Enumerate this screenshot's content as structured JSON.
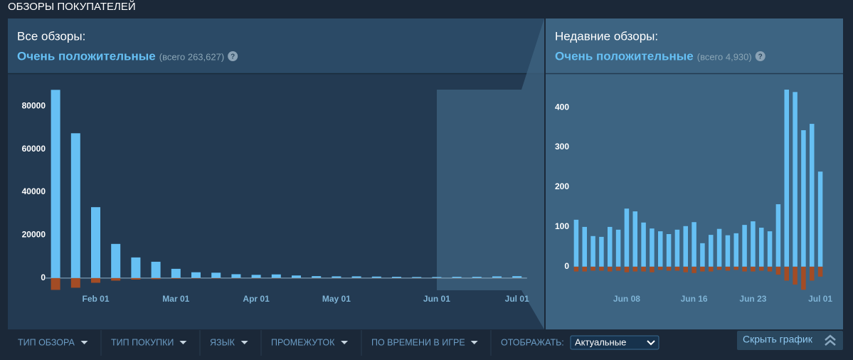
{
  "section_title": "ОБЗОРЫ ПОКУПАТЕЛЕЙ",
  "panels": [
    {
      "label": "Все обзоры:",
      "rating": "Очень положительные",
      "total": "(всего 263,627)",
      "help": "?"
    },
    {
      "label": "Недавние обзоры:",
      "rating": "Очень положительные",
      "total": "(всего 4,930)",
      "help": "?"
    }
  ],
  "chart_data": [
    {
      "type": "bar",
      "categories": [
        null,
        null,
        "Feb 01",
        null,
        null,
        null,
        "Mar 01",
        null,
        null,
        null,
        "Apr 01",
        null,
        null,
        null,
        "May 01",
        null,
        null,
        null,
        null,
        "Jun 01",
        null,
        null,
        null,
        "Jul 01"
      ],
      "series": [
        {
          "color": "#66c0f4",
          "values": [
            87600,
            67400,
            33000,
            15900,
            9600,
            7600,
            4300,
            2700,
            2500,
            1800,
            1500,
            1700,
            1200,
            900,
            800,
            800,
            700,
            600,
            500,
            500,
            600,
            600,
            800,
            900
          ]
        },
        {
          "color": "#a34c25",
          "values": [
            -5500,
            -4500,
            -2200,
            -1200,
            -700,
            -500,
            -300,
            -200,
            -200,
            -150,
            -150,
            -150,
            -100,
            -100,
            -100,
            -100,
            -100,
            -100,
            -100,
            -100,
            -100,
            -100,
            -100,
            -100
          ]
        }
      ],
      "ylim": [
        -8000,
        92000
      ],
      "yticks": [
        0,
        20000,
        40000,
        60000,
        80000
      ]
    },
    {
      "type": "bar",
      "categories": [
        null,
        null,
        null,
        null,
        null,
        null,
        "Jun 08",
        null,
        null,
        null,
        null,
        null,
        null,
        null,
        "Jun 16",
        null,
        null,
        null,
        null,
        null,
        null,
        "Jun 23",
        null,
        null,
        null,
        null,
        null,
        null,
        null,
        "Jul 01"
      ],
      "series": [
        {
          "color": "#66c0f4",
          "values": [
            118,
            100,
            77,
            75,
            100,
            93,
            146,
            139,
            111,
            96,
            89,
            82,
            93,
            102,
            112,
            59,
            80,
            95,
            79,
            84,
            105,
            114,
            98,
            89,
            157,
            445,
            439,
            343,
            359,
            239
          ]
        },
        {
          "color": "#a34c25",
          "values": [
            -12,
            -12,
            -10,
            -10,
            -12,
            -10,
            -14,
            -12,
            -12,
            -14,
            -8,
            -10,
            -10,
            -14,
            -16,
            -12,
            -12,
            -8,
            -10,
            -8,
            -12,
            -12,
            -10,
            -12,
            -20,
            -35,
            -45,
            -58,
            -35,
            -25
          ]
        }
      ],
      "ylim": [
        -70,
        470
      ],
      "yticks": [
        0,
        100,
        200,
        300,
        400
      ]
    }
  ],
  "filters": {
    "items": [
      "ТИП ОБЗОРА",
      "ТИП ПОКУПКИ",
      "ЯЗЫК",
      "ПРОМЕЖУТОК",
      "ПО ВРЕМЕНИ В ИГРЕ"
    ],
    "display_label": "ОТОБРАЖАТЬ:",
    "display_value": "Актуальные",
    "hide_button": "Скрыть график"
  }
}
